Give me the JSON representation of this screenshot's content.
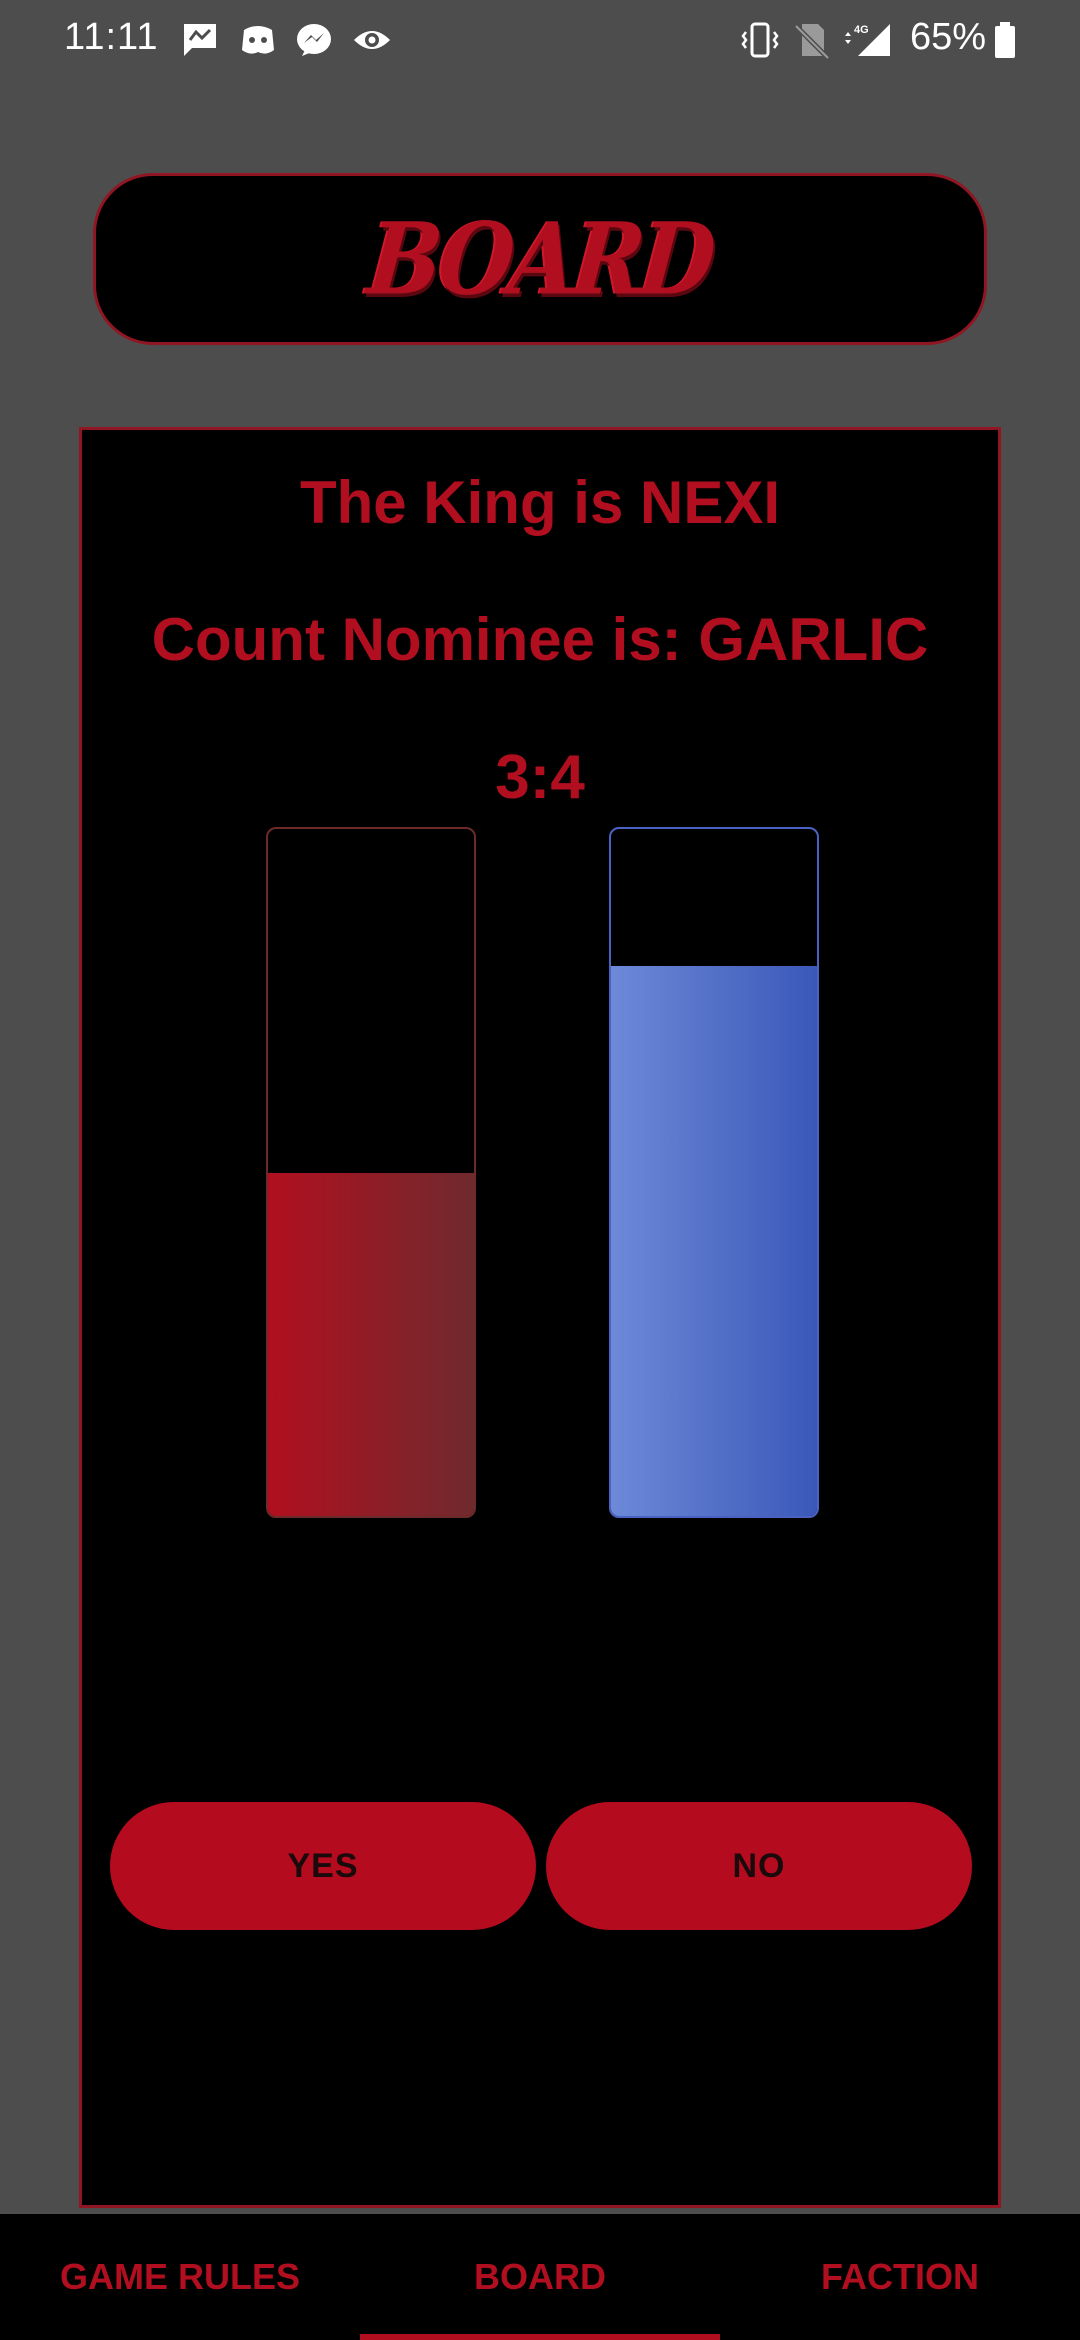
{
  "status_bar": {
    "time": "11:11",
    "battery_percent": "65%",
    "network_label": "4G",
    "icons": [
      "messages-icon",
      "discord-icon",
      "messenger-icon",
      "eye-icon",
      "vibrate-icon",
      "no-sim-icon",
      "signal-icon",
      "battery-icon"
    ]
  },
  "header": {
    "title": "BOARD"
  },
  "board": {
    "king_text": "The King is NEXI",
    "nominee_text": "Count Nominee is: GARLIC",
    "score_text": "3:4",
    "yes_fill_fraction": 0.5,
    "no_fill_fraction": 0.8
  },
  "buttons": {
    "yes_label": "YES",
    "no_label": "NO"
  },
  "tabs": [
    {
      "label": "GAME RULES"
    },
    {
      "label": "BOARD",
      "active": true
    },
    {
      "label": "FACTION"
    }
  ],
  "colors": {
    "accent_red": "#b10f1f",
    "bar_blue": "#4a62c2",
    "background": "#4d4d4d"
  }
}
